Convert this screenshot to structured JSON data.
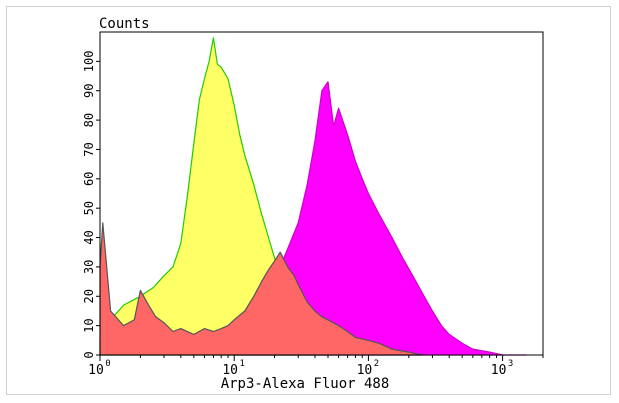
{
  "chart_data": {
    "type": "area",
    "title": "",
    "ylabel": "Counts",
    "xlabel": "Arp3-Alexa Fluor 488",
    "x_scale": "log",
    "xlim": [
      1,
      2000
    ],
    "ylim": [
      0,
      110
    ],
    "grid": false,
    "legend": "none",
    "y_ticks": [
      0,
      10,
      20,
      30,
      40,
      50,
      60,
      70,
      80,
      90,
      100
    ],
    "x_ticks": [
      {
        "value": 1,
        "base": "10",
        "exp": "0"
      },
      {
        "value": 10,
        "base": "10",
        "exp": "1"
      },
      {
        "value": 100,
        "base": "10",
        "exp": "2"
      },
      {
        "value": 1000,
        "base": "10",
        "exp": "3"
      }
    ],
    "series": [
      {
        "fill": "#ffff66",
        "stroke": "#22cc00",
        "x": [
          1,
          1.2,
          1.5,
          2,
          2.5,
          3,
          3.5,
          4,
          4.5,
          5,
          5.5,
          6,
          6.5,
          7,
          7.5,
          8,
          9,
          10,
          11,
          12,
          14,
          16,
          18,
          20,
          22,
          25,
          30,
          35,
          40,
          50
        ],
        "y": [
          5,
          12,
          17,
          20,
          23,
          27,
          30,
          38,
          55,
          72,
          87,
          94,
          100,
          108,
          99,
          98,
          94,
          85,
          75,
          68,
          58,
          48,
          40,
          33,
          25,
          18,
          10,
          5,
          2,
          0
        ]
      },
      {
        "fill": "#ff00ff",
        "stroke": "#cc00cc",
        "x": [
          10,
          14,
          18,
          22,
          26,
          30,
          35,
          40,
          45,
          50,
          55,
          60,
          70,
          80,
          90,
          100,
          120,
          150,
          180,
          220,
          260,
          300,
          350,
          400,
          500,
          600,
          800,
          1000,
          1500
        ],
        "y": [
          0,
          5,
          15,
          30,
          38,
          45,
          58,
          73,
          90,
          93,
          78,
          84,
          75,
          66,
          60,
          55,
          48,
          40,
          33,
          26,
          20,
          15,
          10,
          7,
          4,
          2,
          1,
          0,
          0
        ]
      },
      {
        "fill": "#ff6666",
        "stroke": "#555555",
        "x": [
          1,
          1.05,
          1.2,
          1.5,
          1.8,
          2,
          2.3,
          2.6,
          3,
          3.5,
          4,
          5,
          6,
          7,
          8,
          9,
          10,
          12,
          14,
          16,
          18,
          20,
          22,
          25,
          28,
          30,
          35,
          40,
          45,
          50,
          60,
          70,
          80,
          100,
          120,
          150,
          200,
          250
        ],
        "y": [
          30,
          45,
          15,
          10,
          12,
          22,
          17,
          13,
          11,
          8,
          9,
          7,
          9,
          8,
          9,
          10,
          12,
          15,
          20,
          25,
          29,
          32,
          35,
          30,
          27,
          24,
          18,
          15,
          13,
          12,
          10,
          8,
          6,
          5,
          4,
          2,
          1,
          0
        ]
      }
    ]
  }
}
